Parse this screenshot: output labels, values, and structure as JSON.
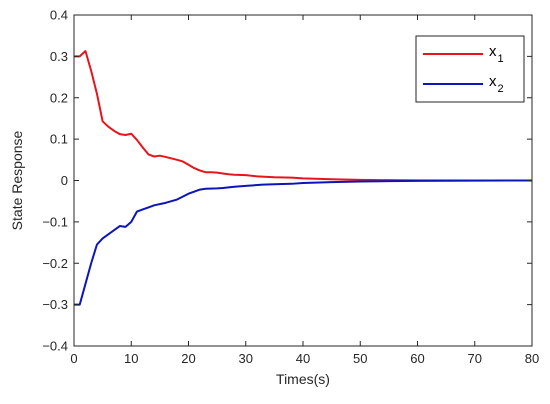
{
  "chart_data": {
    "type": "line",
    "title": "",
    "xlabel": "Times(s)",
    "ylabel": "State Response",
    "xlim": [
      0,
      80
    ],
    "ylim": [
      -0.4,
      0.4
    ],
    "xticks": [
      0,
      10,
      20,
      30,
      40,
      50,
      60,
      70,
      80
    ],
    "xtick_labels": [
      "0",
      "10",
      "20",
      "30",
      "40",
      "50",
      "60",
      "70",
      "80"
    ],
    "yticks": [
      -0.4,
      -0.3,
      -0.2,
      -0.1,
      0,
      0.1,
      0.2,
      0.3,
      0.4
    ],
    "ytick_labels": [
      "−0.4",
      "−0.3",
      "−0.2",
      "−0.1",
      "0",
      "0.1",
      "0.2",
      "0.3",
      "0.4"
    ],
    "grid": false,
    "legend_position": "top-right",
    "series": [
      {
        "legend_base": "x",
        "legend_sub": "1",
        "color": "#e8141b",
        "points": [
          [
            0,
            0.3
          ],
          [
            1,
            0.3
          ],
          [
            2,
            0.313
          ],
          [
            3,
            0.265
          ],
          [
            4,
            0.21
          ],
          [
            5,
            0.143
          ],
          [
            6,
            0.13
          ],
          [
            7,
            0.12
          ],
          [
            8,
            0.112
          ],
          [
            9,
            0.11
          ],
          [
            10,
            0.113
          ],
          [
            11,
            0.098
          ],
          [
            12,
            0.08
          ],
          [
            13,
            0.063
          ],
          [
            14,
            0.058
          ],
          [
            15,
            0.06
          ],
          [
            16,
            0.057
          ],
          [
            18,
            0.05
          ],
          [
            19,
            0.046
          ],
          [
            20,
            0.038
          ],
          [
            21,
            0.03
          ],
          [
            22,
            0.024
          ],
          [
            23,
            0.02
          ],
          [
            24,
            0.02
          ],
          [
            25,
            0.019
          ],
          [
            26,
            0.017
          ],
          [
            27,
            0.015
          ],
          [
            28,
            0.014
          ],
          [
            30,
            0.013
          ],
          [
            32,
            0.01
          ],
          [
            35,
            0.008
          ],
          [
            38,
            0.007
          ],
          [
            40,
            0.005
          ],
          [
            45,
            0.003
          ],
          [
            50,
            0.0015
          ],
          [
            55,
            0.0008
          ],
          [
            60,
            0.0004
          ],
          [
            70,
            0.0001
          ],
          [
            80,
            0.0
          ]
        ]
      },
      {
        "legend_base": "x",
        "legend_sub": "2",
        "color": "#0d14b8",
        "points": [
          [
            0,
            -0.3
          ],
          [
            1,
            -0.3
          ],
          [
            2,
            -0.25
          ],
          [
            3,
            -0.2
          ],
          [
            4,
            -0.155
          ],
          [
            5,
            -0.14
          ],
          [
            6,
            -0.13
          ],
          [
            7,
            -0.12
          ],
          [
            8,
            -0.11
          ],
          [
            9,
            -0.112
          ],
          [
            10,
            -0.1
          ],
          [
            11,
            -0.075
          ],
          [
            12,
            -0.07
          ],
          [
            13,
            -0.065
          ],
          [
            14,
            -0.06
          ],
          [
            16,
            -0.054
          ],
          [
            18,
            -0.046
          ],
          [
            20,
            -0.032
          ],
          [
            22,
            -0.022
          ],
          [
            23,
            -0.02
          ],
          [
            25,
            -0.019
          ],
          [
            26,
            -0.018
          ],
          [
            28,
            -0.015
          ],
          [
            30,
            -0.013
          ],
          [
            31,
            -0.012
          ],
          [
            33,
            -0.01
          ],
          [
            35,
            -0.009
          ],
          [
            38,
            -0.008
          ],
          [
            40,
            -0.006
          ],
          [
            45,
            -0.004
          ],
          [
            50,
            -0.0025
          ],
          [
            55,
            -0.0015
          ],
          [
            60,
            -0.0008
          ],
          [
            70,
            -0.0002
          ],
          [
            80,
            0.0
          ]
        ]
      }
    ]
  }
}
